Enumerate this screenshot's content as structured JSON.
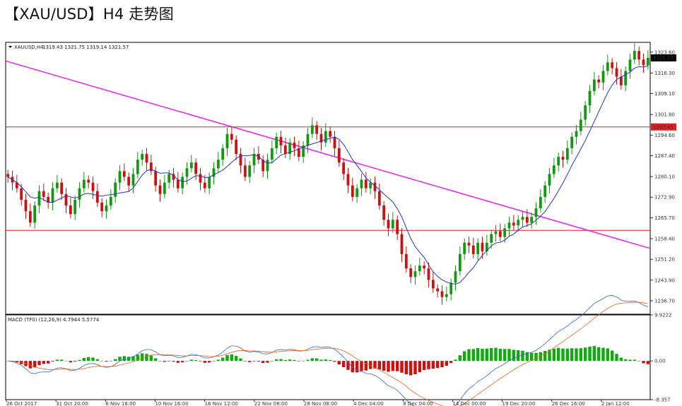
{
  "title": "【XAU/USD】H4 走势图",
  "chart_data": [
    {
      "type": "candlestick",
      "header": {
        "symbol": "XAUUSD,H4",
        "ohlc": "1319.43 1321.75 1319.14 1321.57"
      },
      "y_ticks": [
        "1323.60",
        "1316.30",
        "1309.10",
        "1301.80",
        "1294.60",
        "1287.40",
        "1280.10",
        "1272.90",
        "1265.70",
        "1258.40",
        "1251.20",
        "1243.90",
        "1236.70"
      ],
      "ylim": [
        1232.0,
        1327.0
      ],
      "current_price": "1321.57",
      "current_price_color": "#000000",
      "horizontal_lines": [
        {
          "value": 1297.45,
          "label": "1297.45",
          "color": "#e02020"
        },
        {
          "value": 1261.3,
          "label": "",
          "color": "#e02020"
        }
      ],
      "trendline": {
        "color": "#ee22ee",
        "from": [
          0,
          1320.5
        ],
        "to": [
          1,
          1255.0
        ]
      },
      "ma_color": "#2233cc",
      "up_color": "#119911",
      "down_color": "#cc1111",
      "closes": [
        1280,
        1278,
        1276,
        1272,
        1268,
        1264,
        1270,
        1275,
        1273,
        1271,
        1276,
        1278,
        1274,
        1270,
        1267,
        1272,
        1276,
        1279,
        1278,
        1275,
        1271,
        1268,
        1270,
        1273,
        1278,
        1282,
        1280,
        1277,
        1281,
        1286,
        1288,
        1285,
        1282,
        1277,
        1274,
        1278,
        1281,
        1279,
        1276,
        1280,
        1283,
        1285,
        1281,
        1278,
        1276,
        1280,
        1283,
        1286,
        1290,
        1295,
        1293,
        1288,
        1284,
        1280,
        1284,
        1288,
        1286,
        1282,
        1286,
        1290,
        1294,
        1291,
        1288,
        1292,
        1290,
        1287,
        1291,
        1295,
        1298,
        1295,
        1292,
        1296,
        1294,
        1290,
        1285,
        1281,
        1277,
        1273,
        1276,
        1279,
        1276,
        1278,
        1275,
        1270,
        1265,
        1262,
        1265,
        1260,
        1253,
        1248,
        1245,
        1247,
        1249,
        1248,
        1244,
        1241,
        1240,
        1238,
        1239,
        1243,
        1247,
        1253,
        1257,
        1256,
        1253,
        1257,
        1254,
        1257,
        1260,
        1261,
        1259,
        1262,
        1264,
        1263,
        1265,
        1266,
        1264,
        1266,
        1269,
        1273,
        1277,
        1281,
        1284,
        1287,
        1286,
        1290,
        1294,
        1296,
        1300,
        1305,
        1310,
        1314,
        1313,
        1317,
        1320,
        1318,
        1315,
        1312,
        1317,
        1321,
        1324,
        1321,
        1319,
        1321.57
      ],
      "macd": {
        "header": "MACD (TF0) (12,26,9) 4.7944 5.5774",
        "y_ticks": [
          "9.9222",
          "0.00",
          "-8.357"
        ],
        "ylim": [
          -8.357,
          9.9222
        ],
        "histogram_color_up": "#11aa11",
        "histogram_color_down": "#cc1111"
      },
      "x_ticks": [
        "26 Oct 2017",
        "31 Oct 20:00",
        "6 Nov 16:00",
        "10 Nov 16:00",
        "16 Nov 12:00",
        "22 Nov 08:00",
        "28 Nov 08:00",
        "4 Dec 04:00",
        "8 Dec 04:00",
        "14 Dec 00:00",
        "19 Dec 20:00",
        "26 Dec 16:00",
        "2 Jan 12:00"
      ]
    }
  ]
}
